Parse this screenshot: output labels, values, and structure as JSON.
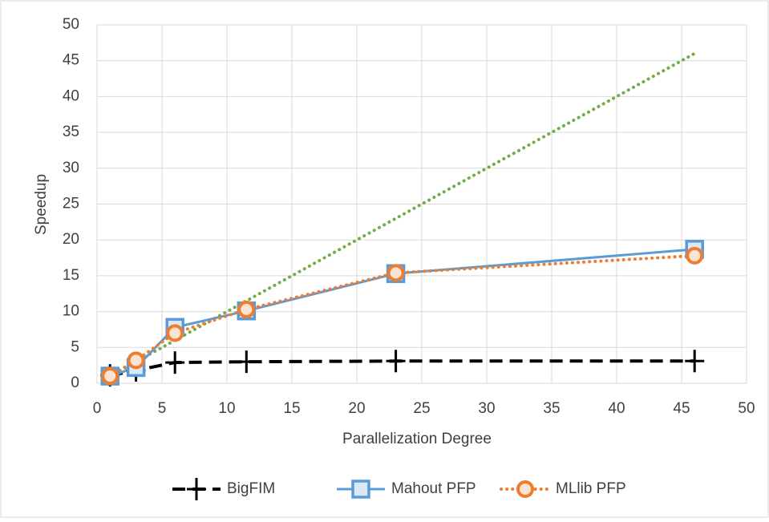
{
  "chart_data": {
    "type": "line",
    "x_label": "Parallelization Degree",
    "y_label": "Speedup",
    "x": [
      1,
      3,
      6,
      11.5,
      23,
      46
    ],
    "series": [
      {
        "name": "BigFIM",
        "color": "#000000",
        "style": "dashed",
        "marker": "plus",
        "values": [
          1.1,
          1.8,
          2.9,
          3.0,
          3.1,
          3.1
        ]
      },
      {
        "name": "Mahout PFP",
        "color": "#5b9bd5",
        "style": "solid",
        "marker": "square",
        "values": [
          1.0,
          2.2,
          7.8,
          10.1,
          15.3,
          18.7
        ]
      },
      {
        "name": "MLlib PFP",
        "color": "#ed7d31",
        "style": "dotted",
        "marker": "circle",
        "values": [
          1.0,
          3.2,
          7.0,
          10.3,
          15.4,
          17.8
        ]
      },
      {
        "color": "#70ad47",
        "style": "dotted",
        "marker": "none",
        "values": [
          1,
          3,
          6,
          11.5,
          23,
          46
        ]
      }
    ],
    "xlim": [
      0,
      50
    ],
    "xticks": [
      0,
      5,
      10,
      15,
      20,
      25,
      30,
      35,
      40,
      45,
      50
    ],
    "ylim": [
      0,
      50
    ],
    "yticks": [
      0,
      5,
      10,
      15,
      20,
      25,
      30,
      35,
      40,
      45,
      50
    ],
    "grid": true,
    "legend": "bottom"
  }
}
